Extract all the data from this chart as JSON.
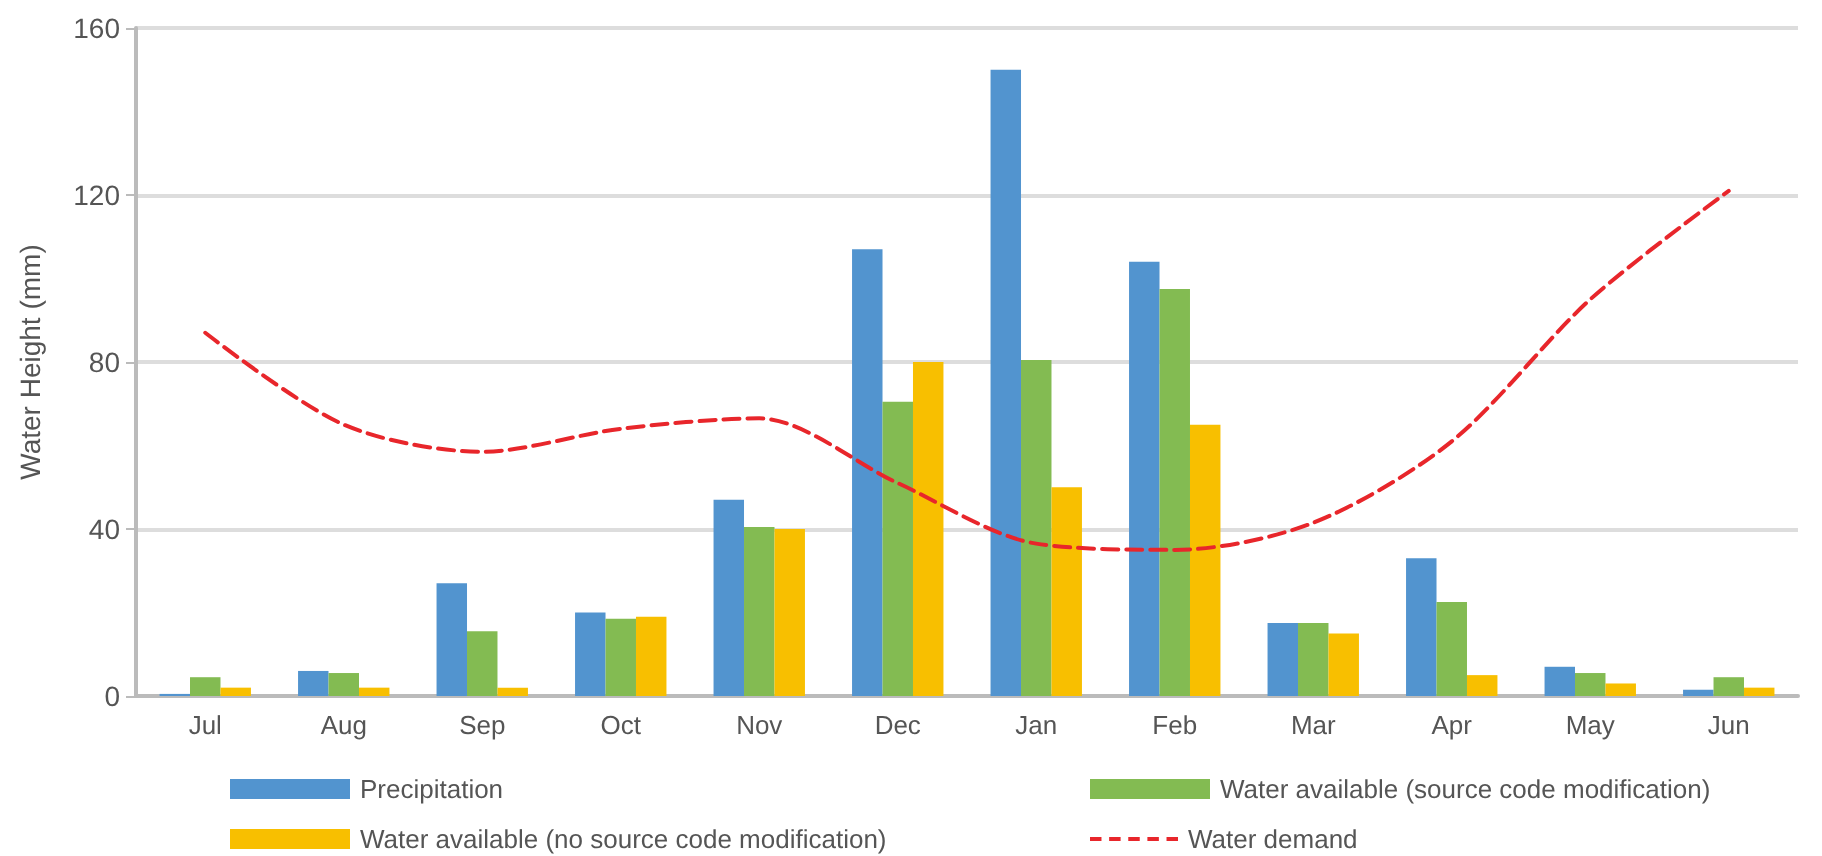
{
  "chart_data": {
    "type": "bar",
    "ylabel": "Water Height (mm)",
    "categories": [
      "Jul",
      "Aug",
      "Sep",
      "Oct",
      "Nov",
      "Dec",
      "Jan",
      "Feb",
      "Mar",
      "Apr",
      "May",
      "Jun"
    ],
    "series": [
      {
        "name": "Precipitation",
        "color": "#5294cf",
        "values": [
          0.5,
          6,
          27,
          20,
          47,
          107,
          150,
          104,
          17.5,
          33,
          7,
          1.5
        ]
      },
      {
        "name": "Water available (source code modification)",
        "color": "#83bb52",
        "values": [
          4.5,
          5.5,
          15.5,
          18.5,
          40.5,
          70.5,
          80.5,
          97.5,
          17.5,
          22.5,
          5.5,
          4.5
        ]
      },
      {
        "name": "Water available (no source code modification)",
        "color": "#f8bf00",
        "values": [
          2,
          2,
          2,
          19,
          40,
          80,
          50,
          65,
          15,
          5,
          3,
          2
        ]
      },
      {
        "name": "Water demand",
        "type": "line",
        "color": "#e8262b",
        "line_style": "dashed",
        "marker": "none",
        "values": [
          87,
          65,
          58.5,
          64,
          66.5,
          51,
          36.5,
          35,
          41.5,
          61,
          95,
          121
        ]
      }
    ],
    "ylim": [
      0,
      160
    ],
    "yticks": [
      0,
      40,
      80,
      120,
      160
    ],
    "grid": "y",
    "legend": "bottom"
  }
}
